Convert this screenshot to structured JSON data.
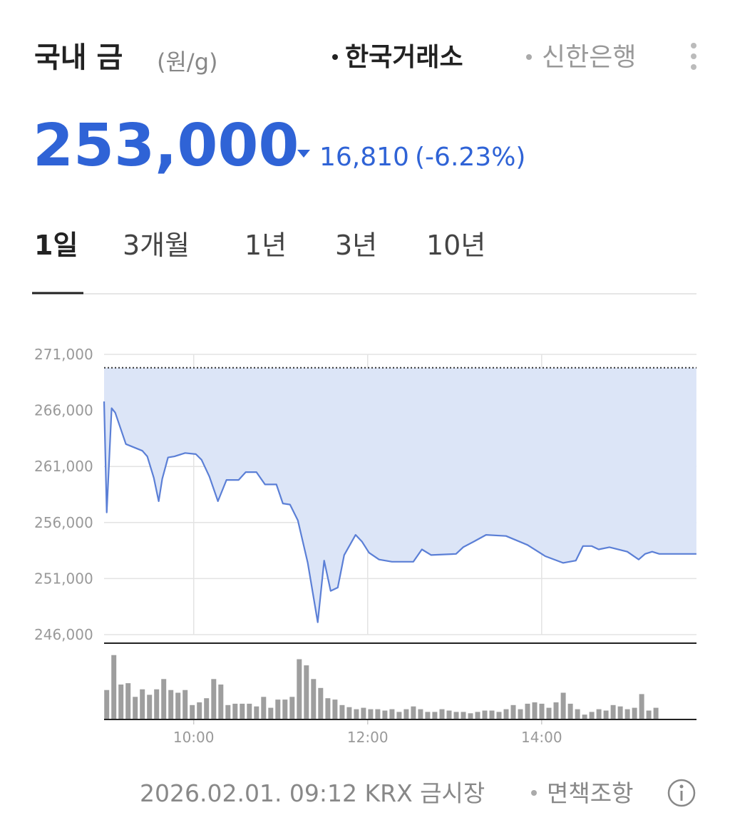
{
  "header": {
    "title": "국내 금",
    "unit": "(원/g)",
    "sources": [
      "한국거래소",
      "신한은행"
    ]
  },
  "price": {
    "value": "253,000",
    "change": "16,810",
    "change_pct": "(-6.23%)"
  },
  "tabs": [
    "1일",
    "3개월",
    "1년",
    "3년",
    "10년"
  ],
  "chart_data": [
    {
      "type": "area",
      "color": "#5b7fd6",
      "fill": "#dce5f7",
      "grid": true,
      "reference_line": 269810,
      "x": [
        8.97,
        9.0,
        9.057,
        9.098,
        9.221,
        9.41,
        9.467,
        9.541,
        9.598,
        9.639,
        9.705,
        9.779,
        9.902,
        10.025,
        10.09,
        10.18,
        10.279,
        10.377,
        10.516,
        10.598,
        10.721,
        10.82,
        10.951,
        11.025,
        11.107,
        11.197,
        11.311,
        11.426,
        11.5,
        11.574,
        11.656,
        11.73,
        11.861,
        11.934,
        12.016,
        12.131,
        12.279,
        12.525,
        12.623,
        12.73,
        13.016,
        13.098,
        13.221,
        13.361,
        13.59,
        13.836,
        14.041,
        14.246,
        14.393,
        14.475,
        14.574,
        14.656,
        14.779,
        14.984,
        15.115,
        15.189,
        15.27,
        15.352,
        15.779
      ],
      "values": [
        266800,
        256900,
        266200,
        265800,
        263000,
        262400,
        261900,
        260000,
        257900,
        259900,
        261800,
        261900,
        262200,
        262100,
        261600,
        260100,
        257900,
        259800,
        259800,
        260500,
        260500,
        259400,
        259400,
        257700,
        257600,
        256200,
        252400,
        247100,
        252600,
        249900,
        250200,
        253100,
        254900,
        254300,
        253300,
        252700,
        252500,
        252500,
        253600,
        253100,
        253200,
        253800,
        254300,
        254900,
        254800,
        254000,
        253000,
        252400,
        252600,
        253900,
        253900,
        253600,
        253800,
        253400,
        252700,
        253200,
        253400,
        253200,
        253200
      ],
      "xlim": [
        8.97,
        15.78
      ],
      "xticks": [
        {
          "value": 10,
          "label": "10:00"
        },
        {
          "value": 12,
          "label": "12:00"
        },
        {
          "value": 14,
          "label": "14:00"
        }
      ],
      "ylim": [
        246000,
        271000
      ],
      "yticks": [
        {
          "value": 246000,
          "label": "246,000"
        },
        {
          "value": 251000,
          "label": "251,000"
        },
        {
          "value": 256000,
          "label": "256,000"
        },
        {
          "value": 261000,
          "label": "261,000"
        },
        {
          "value": 266000,
          "label": "266,000"
        },
        {
          "value": 271000,
          "label": "271,000"
        }
      ]
    },
    {
      "type": "bar",
      "color": "#9e9e9e",
      "x": [
        9.0,
        9.082,
        9.164,
        9.246,
        9.328,
        9.41,
        9.492,
        9.574,
        9.656,
        9.738,
        9.82,
        9.902,
        9.984,
        10.066,
        10.148,
        10.23,
        10.312,
        10.394,
        10.476,
        10.558,
        10.64,
        10.722,
        10.804,
        10.886,
        10.968,
        11.05,
        11.132,
        11.214,
        11.296,
        11.378,
        11.46,
        11.542,
        11.624,
        11.706,
        11.788,
        11.87,
        11.952,
        12.034,
        12.116,
        12.198,
        12.28,
        12.362,
        12.444,
        12.526,
        12.608,
        12.69,
        12.772,
        12.854,
        12.936,
        13.018,
        13.1,
        13.182,
        13.264,
        13.346,
        13.428,
        13.51,
        13.592,
        13.674,
        13.756,
        13.838,
        13.92,
        14.002,
        14.084,
        14.166,
        14.248,
        14.33,
        14.412,
        14.494,
        14.576,
        14.658,
        14.74,
        14.822,
        14.904,
        14.986,
        15.068,
        15.15,
        15.232,
        15.314
      ],
      "values": [
        42,
        93,
        50,
        52,
        32,
        43,
        35,
        43,
        58,
        42,
        38,
        42,
        20,
        24,
        30,
        58,
        50,
        20,
        22,
        22,
        22,
        18,
        32,
        16,
        28,
        28,
        32,
        87,
        78,
        58,
        45,
        30,
        28,
        20,
        17,
        14,
        16,
        14,
        14,
        12,
        14,
        10,
        14,
        18,
        14,
        10,
        10,
        14,
        12,
        10,
        10,
        8,
        10,
        12,
        12,
        10,
        14,
        20,
        14,
        22,
        24,
        22,
        16,
        24,
        38,
        22,
        14,
        6,
        10,
        14,
        12,
        20,
        18,
        14,
        16,
        36,
        12,
        16
      ],
      "xlim": [
        8.97,
        15.78
      ],
      "ylim": [
        0,
        100
      ]
    }
  ],
  "footer": {
    "timestamp": "2026.02.01. 09:12 KRX 금시장",
    "disclaimer": "면책조항"
  }
}
